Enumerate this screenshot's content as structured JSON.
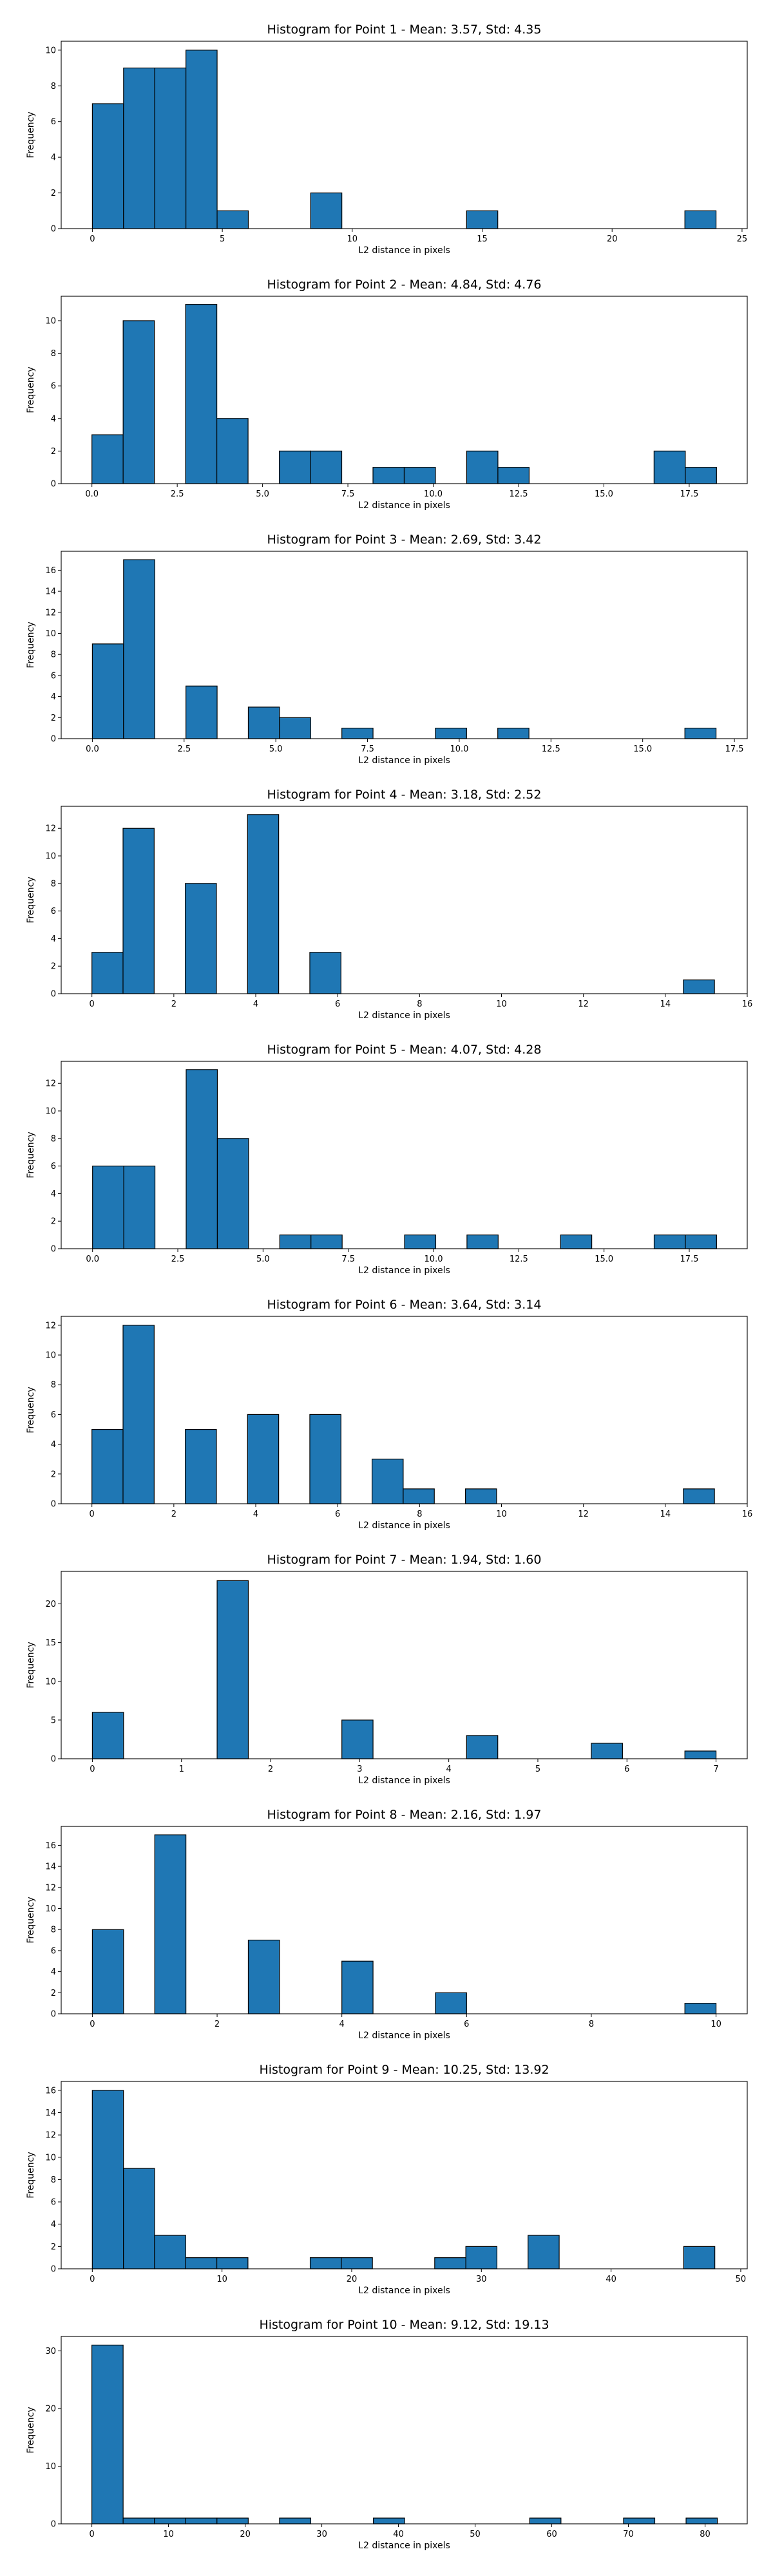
{
  "chart_data": [
    {
      "type": "bar",
      "title": "Histogram for Point 1 - Mean: 3.57, Std: 4.35",
      "xlabel": "L2 distance in pixels",
      "ylabel": "Frequency",
      "xlim": [
        -1.2,
        25.2
      ],
      "ylim": [
        0,
        10.5
      ],
      "xticks": [
        0,
        5,
        10,
        15,
        20,
        25
      ],
      "xtick_labels": [
        "0",
        "5",
        "10",
        "15",
        "20",
        "25"
      ],
      "yticks": [
        0,
        2,
        4,
        6,
        8,
        10
      ],
      "bin_edges": [
        0,
        1.2,
        2.4,
        3.6,
        4.8,
        6.0,
        7.2,
        8.4,
        9.6,
        10.8,
        12.0,
        13.2,
        14.4,
        15.6,
        16.8,
        18.0,
        19.2,
        20.4,
        21.6,
        22.8,
        24.0
      ],
      "values": [
        7,
        9,
        9,
        10,
        1,
        0,
        0,
        2,
        0,
        0,
        0,
        0,
        1,
        0,
        0,
        0,
        0,
        0,
        0,
        1
      ]
    },
    {
      "type": "bar",
      "title": "Histogram for Point 2 - Mean: 4.84, Std: 4.76",
      "xlabel": "L2 distance in pixels",
      "ylabel": "Frequency",
      "xlim": [
        -0.9,
        19.2
      ],
      "ylim": [
        0,
        11.5
      ],
      "xticks": [
        0,
        2.5,
        5,
        7.5,
        10,
        12.5,
        15,
        17.5
      ],
      "xtick_labels": [
        "0.0",
        "2.5",
        "5.0",
        "7.5",
        "10.0",
        "12.5",
        "15.0",
        "17.5"
      ],
      "yticks": [
        0,
        2,
        4,
        6,
        8,
        10
      ],
      "bin_edges": [
        0,
        0.915,
        1.83,
        2.745,
        3.66,
        4.575,
        5.49,
        6.405,
        7.32,
        8.235,
        9.15,
        10.065,
        10.98,
        11.895,
        12.81,
        13.725,
        14.64,
        15.555,
        16.47,
        17.385,
        18.3
      ],
      "values": [
        3,
        10,
        0,
        11,
        4,
        0,
        2,
        2,
        0,
        1,
        1,
        0,
        2,
        1,
        0,
        0,
        0,
        0,
        2,
        1
      ]
    },
    {
      "type": "bar",
      "title": "Histogram for Point 3 - Mean: 2.69, Std: 3.42",
      "xlabel": "L2 distance in pixels",
      "ylabel": "Frequency",
      "xlim": [
        -0.85,
        17.85
      ],
      "ylim": [
        0,
        17.8
      ],
      "xticks": [
        0,
        2.5,
        5,
        7.5,
        10,
        12.5,
        15,
        17.5
      ],
      "xtick_labels": [
        "0.0",
        "2.5",
        "5.0",
        "7.5",
        "10.0",
        "12.5",
        "15.0",
        "17.5"
      ],
      "yticks": [
        0,
        2,
        4,
        6,
        8,
        10,
        12,
        14,
        16
      ],
      "bin_edges": [
        0,
        0.85,
        1.7,
        2.55,
        3.4,
        4.25,
        5.1,
        5.95,
        6.8,
        7.65,
        8.5,
        9.35,
        10.2,
        11.05,
        11.9,
        12.75,
        13.6,
        14.45,
        15.3,
        16.15,
        17.0
      ],
      "values": [
        9,
        17,
        0,
        5,
        0,
        3,
        2,
        0,
        1,
        0,
        0,
        1,
        0,
        1,
        0,
        0,
        0,
        0,
        0,
        1
      ]
    },
    {
      "type": "bar",
      "title": "Histogram for Point 4 - Mean: 3.18, Std: 2.52",
      "xlabel": "L2 distance in pixels",
      "ylabel": "Frequency",
      "xlim": [
        -0.75,
        16.0
      ],
      "ylim": [
        0,
        13.6
      ],
      "xticks": [
        0,
        2,
        4,
        6,
        8,
        10,
        12,
        14,
        16
      ],
      "xtick_labels": [
        "0",
        "2",
        "4",
        "6",
        "8",
        "10",
        "12",
        "14",
        "16"
      ],
      "yticks": [
        0,
        2,
        4,
        6,
        8,
        10,
        12
      ],
      "bin_edges": [
        0,
        0.76,
        1.52,
        2.28,
        3.04,
        3.8,
        4.56,
        5.32,
        6.08,
        6.84,
        7.6,
        8.36,
        9.12,
        9.88,
        10.64,
        11.4,
        12.16,
        12.92,
        13.68,
        14.44,
        15.2
      ],
      "values": [
        3,
        12,
        0,
        8,
        0,
        13,
        0,
        3,
        0,
        0,
        0,
        0,
        0,
        0,
        0,
        0,
        0,
        0,
        0,
        1
      ]
    },
    {
      "type": "bar",
      "title": "Histogram for Point 5 - Mean: 4.07, Std: 4.28",
      "xlabel": "L2 distance in pixels",
      "ylabel": "Frequency",
      "xlim": [
        -0.92,
        19.2
      ],
      "ylim": [
        0,
        13.6
      ],
      "xticks": [
        0,
        2.5,
        5,
        7.5,
        10,
        12.5,
        15,
        17.5
      ],
      "xtick_labels": [
        "0.0",
        "2.5",
        "5.0",
        "7.5",
        "10.0",
        "12.5",
        "15.0",
        "17.5"
      ],
      "yticks": [
        0,
        2,
        4,
        6,
        8,
        10,
        12
      ],
      "bin_edges": [
        0,
        0.915,
        1.83,
        2.745,
        3.66,
        4.575,
        5.49,
        6.405,
        7.32,
        8.235,
        9.15,
        10.065,
        10.98,
        11.895,
        12.81,
        13.725,
        14.64,
        15.555,
        16.47,
        17.385,
        18.3
      ],
      "values": [
        6,
        6,
        0,
        13,
        8,
        0,
        1,
        1,
        0,
        0,
        1,
        0,
        1,
        0,
        0,
        1,
        0,
        0,
        1,
        1
      ]
    },
    {
      "type": "bar",
      "title": "Histogram for Point 6 - Mean: 3.64, Std: 3.14",
      "xlabel": "L2 distance in pixels",
      "ylabel": "Frequency",
      "xlim": [
        -0.75,
        16.0
      ],
      "ylim": [
        0,
        12.6
      ],
      "xticks": [
        0,
        2,
        4,
        6,
        8,
        10,
        12,
        14,
        16
      ],
      "xtick_labels": [
        "0",
        "2",
        "4",
        "6",
        "8",
        "10",
        "12",
        "14",
        "16"
      ],
      "yticks": [
        0,
        2,
        4,
        6,
        8,
        10,
        12
      ],
      "bin_edges": [
        0,
        0.76,
        1.52,
        2.28,
        3.04,
        3.8,
        4.56,
        5.32,
        6.08,
        6.84,
        7.6,
        8.36,
        9.12,
        9.88,
        10.64,
        11.4,
        12.16,
        12.92,
        13.68,
        14.44,
        15.2
      ],
      "values": [
        5,
        12,
        0,
        5,
        0,
        6,
        0,
        6,
        0,
        3,
        1,
        0,
        1,
        0,
        0,
        0,
        0,
        0,
        0,
        1
      ]
    },
    {
      "type": "bar",
      "title": "Histogram for Point 7 - Mean: 1.94, Std: 1.60",
      "xlabel": "L2 distance in pixels",
      "ylabel": "Frequency",
      "xlim": [
        -0.35,
        7.35
      ],
      "ylim": [
        0,
        24.2
      ],
      "xticks": [
        0,
        1,
        2,
        3,
        4,
        5,
        6,
        7
      ],
      "xtick_labels": [
        "0",
        "1",
        "2",
        "3",
        "4",
        "5",
        "6",
        "7"
      ],
      "yticks": [
        0,
        5,
        10,
        15,
        20
      ],
      "bin_edges": [
        0,
        0.35,
        0.7,
        1.05,
        1.4,
        1.75,
        2.1,
        2.45,
        2.8,
        3.15,
        3.5,
        3.85,
        4.2,
        4.55,
        4.9,
        5.25,
        5.6,
        5.95,
        6.3,
        6.65,
        7.0
      ],
      "values": [
        6,
        0,
        0,
        0,
        23,
        0,
        0,
        0,
        5,
        0,
        0,
        0,
        3,
        0,
        0,
        0,
        2,
        0,
        0,
        1
      ]
    },
    {
      "type": "bar",
      "title": "Histogram for Point 8 - Mean: 2.16, Std: 1.97",
      "xlabel": "L2 distance in pixels",
      "ylabel": "Frequency",
      "xlim": [
        -0.5,
        10.5
      ],
      "ylim": [
        0,
        17.8
      ],
      "xticks": [
        0,
        2,
        4,
        6,
        8,
        10
      ],
      "xtick_labels": [
        "0",
        "2",
        "4",
        "6",
        "8",
        "10"
      ],
      "yticks": [
        0,
        2,
        4,
        6,
        8,
        10,
        12,
        14,
        16
      ],
      "bin_edges": [
        0,
        0.5,
        1.0,
        1.5,
        2.0,
        2.5,
        3.0,
        3.5,
        4.0,
        4.5,
        5.0,
        5.5,
        6.0,
        6.5,
        7.0,
        7.5,
        8.0,
        8.5,
        9.0,
        9.5,
        10.0
      ],
      "values": [
        8,
        0,
        17,
        0,
        0,
        7,
        0,
        0,
        5,
        0,
        0,
        2,
        0,
        0,
        0,
        0,
        0,
        0,
        0,
        1
      ]
    },
    {
      "type": "bar",
      "title": "Histogram for Point 9 - Mean: 10.25, Std: 13.92",
      "xlabel": "L2 distance in pixels",
      "ylabel": "Frequency",
      "xlim": [
        -2.4,
        50.5
      ],
      "ylim": [
        0,
        16.8
      ],
      "xticks": [
        0,
        10,
        20,
        30,
        40,
        50
      ],
      "xtick_labels": [
        "0",
        "10",
        "20",
        "30",
        "40",
        "50"
      ],
      "yticks": [
        0,
        2,
        4,
        6,
        8,
        10,
        12,
        14,
        16
      ],
      "bin_edges": [
        0,
        2.4,
        4.8,
        7.2,
        9.6,
        12.0,
        14.4,
        16.8,
        19.2,
        21.6,
        24.0,
        26.4,
        28.8,
        31.2,
        33.6,
        36.0,
        38.4,
        40.8,
        43.2,
        45.6,
        48.0
      ],
      "values": [
        16,
        9,
        3,
        1,
        1,
        0,
        0,
        1,
        1,
        0,
        0,
        1,
        2,
        0,
        3,
        0,
        0,
        0,
        0,
        2
      ]
    },
    {
      "type": "bar",
      "title": "Histogram for Point 10 - Mean: 9.12, Std: 19.13",
      "xlabel": "L2 distance in pixels",
      "ylabel": "Frequency",
      "xlim": [
        -4.0,
        85.5
      ],
      "ylim": [
        0,
        32.5
      ],
      "xticks": [
        0,
        10,
        20,
        30,
        40,
        50,
        60,
        70,
        80
      ],
      "xtick_labels": [
        "0",
        "10",
        "20",
        "30",
        "40",
        "50",
        "60",
        "70",
        "80"
      ],
      "yticks": [
        0,
        10,
        20,
        30
      ],
      "bin_edges": [
        0,
        4.08,
        8.16,
        12.24,
        16.32,
        20.4,
        24.48,
        28.56,
        32.64,
        36.72,
        40.8,
        44.88,
        48.96,
        53.04,
        57.12,
        61.2,
        65.28,
        69.36,
        73.44,
        77.52,
        81.6
      ],
      "values": [
        31,
        1,
        1,
        1,
        1,
        0,
        1,
        0,
        0,
        1,
        0,
        0,
        0,
        0,
        1,
        0,
        0,
        1,
        0,
        1
      ]
    }
  ]
}
